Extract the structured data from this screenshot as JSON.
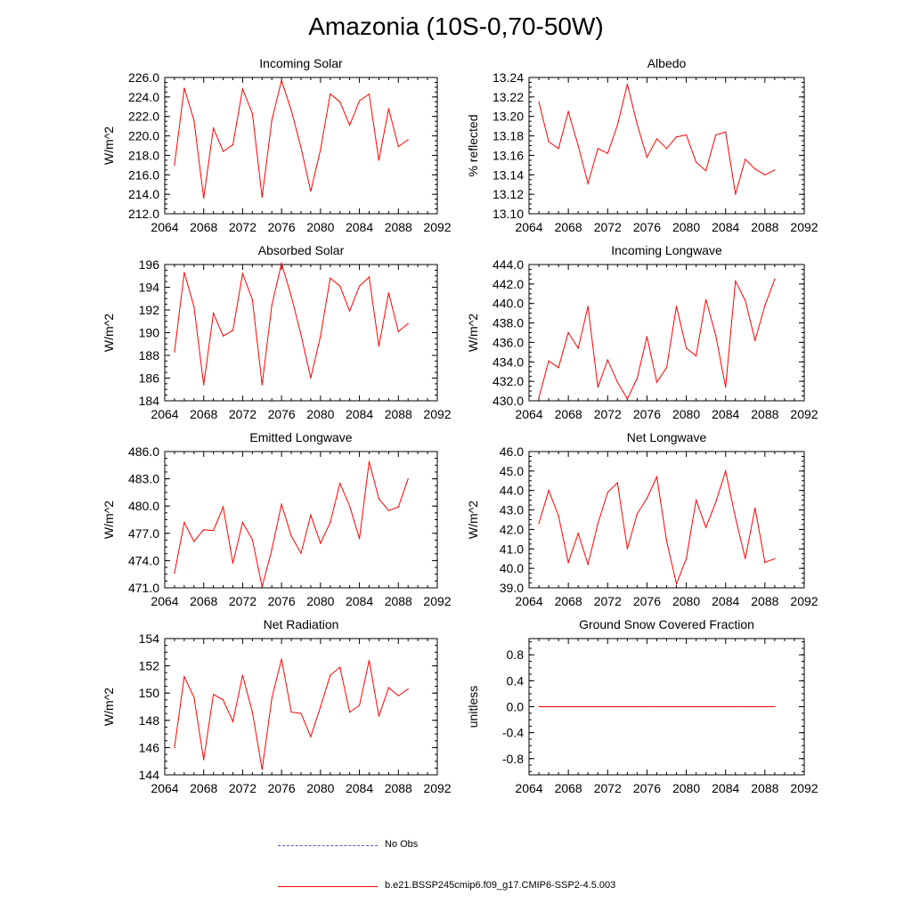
{
  "title": "Amazonia (10S-0,70-50W)",
  "colors": {
    "series": "#ff0000",
    "obs": "#4b5cc4",
    "axis": "#000000"
  },
  "legend": {
    "obs_label": "No Obs",
    "model_label": "b.e21.BSSP245cmip6.f09_g17.CMIP6-SSP2-4.5.003"
  },
  "chart_data": [
    {
      "type": "line",
      "title": "Incoming Solar",
      "ylabel": "W/m^2",
      "xlabel": "",
      "xlim": [
        2064,
        2092
      ],
      "xticks": [
        2064,
        2068,
        2072,
        2076,
        2080,
        2084,
        2088,
        2092
      ],
      "ylim": [
        212,
        226
      ],
      "yticks": [
        212.0,
        214.0,
        216.0,
        218.0,
        220.0,
        222.0,
        224.0,
        226.0
      ],
      "ydec": 1,
      "x": [
        2065,
        2066,
        2067,
        2068,
        2069,
        2070,
        2071,
        2072,
        2073,
        2074,
        2075,
        2076,
        2077,
        2078,
        2079,
        2080,
        2081,
        2082,
        2083,
        2084,
        2085,
        2086,
        2087,
        2088,
        2089
      ],
      "series": [
        {
          "name": "b.e21.BSSP245cmip6.f09_g17.CMIP6-SSP2-4.5.003",
          "values": [
            217.0,
            224.9,
            221.6,
            213.6,
            220.8,
            218.4,
            219.1,
            224.8,
            222.3,
            213.7,
            221.6,
            225.7,
            222.6,
            218.8,
            214.3,
            218.6,
            224.3,
            223.5,
            221.1,
            223.6,
            224.3,
            217.5,
            222.8,
            218.9,
            219.6
          ]
        }
      ]
    },
    {
      "type": "line",
      "title": "Albedo",
      "ylabel": "% reflected",
      "xlabel": "",
      "xlim": [
        2064,
        2092
      ],
      "xticks": [
        2064,
        2068,
        2072,
        2076,
        2080,
        2084,
        2088,
        2092
      ],
      "ylim": [
        13.1,
        13.24
      ],
      "yticks": [
        13.1,
        13.12,
        13.14,
        13.16,
        13.18,
        13.2,
        13.22,
        13.24
      ],
      "ydec": 2,
      "x": [
        2065,
        2066,
        2067,
        2068,
        2069,
        2070,
        2071,
        2072,
        2073,
        2074,
        2075,
        2076,
        2077,
        2078,
        2079,
        2080,
        2081,
        2082,
        2083,
        2084,
        2085,
        2086,
        2087,
        2088,
        2089
      ],
      "series": [
        {
          "name": "b.e21.BSSP245cmip6.f09_g17.CMIP6-SSP2-4.5.003",
          "values": [
            13.215,
            13.174,
            13.167,
            13.205,
            13.17,
            13.131,
            13.167,
            13.162,
            13.191,
            13.233,
            13.192,
            13.158,
            13.177,
            13.167,
            13.179,
            13.181,
            13.153,
            13.144,
            13.181,
            13.184,
            13.12,
            13.156,
            13.146,
            13.14,
            13.145
          ]
        }
      ]
    },
    {
      "type": "line",
      "title": "Absorbed Solar",
      "ylabel": "W/m^2",
      "xlabel": "",
      "xlim": [
        2064,
        2092
      ],
      "xticks": [
        2064,
        2068,
        2072,
        2076,
        2080,
        2084,
        2088,
        2092
      ],
      "ylim": [
        184,
        196
      ],
      "yticks": [
        184,
        186,
        188,
        190,
        192,
        194,
        196
      ],
      "ydec": 0,
      "x": [
        2065,
        2066,
        2067,
        2068,
        2069,
        2070,
        2071,
        2072,
        2073,
        2074,
        2075,
        2076,
        2077,
        2078,
        2079,
        2080,
        2081,
        2082,
        2083,
        2084,
        2085,
        2086,
        2087,
        2088,
        2089
      ],
      "series": [
        {
          "name": "b.e21.BSSP245cmip6.f09_g17.CMIP6-SSP2-4.5.003",
          "values": [
            188.3,
            195.3,
            192.3,
            185.4,
            191.7,
            189.7,
            190.2,
            195.2,
            192.9,
            185.4,
            192.4,
            196.1,
            193.2,
            189.8,
            186.0,
            189.7,
            194.8,
            194.1,
            191.9,
            194.1,
            194.9,
            188.8,
            193.5,
            190.1,
            190.8
          ]
        }
      ]
    },
    {
      "type": "line",
      "title": "Incoming Longwave",
      "ylabel": "W/m^2",
      "xlabel": "",
      "xlim": [
        2064,
        2092
      ],
      "xticks": [
        2064,
        2068,
        2072,
        2076,
        2080,
        2084,
        2088,
        2092
      ],
      "ylim": [
        430,
        444
      ],
      "yticks": [
        430.0,
        432.0,
        434.0,
        436.0,
        438.0,
        440.0,
        442.0,
        444.0
      ],
      "ydec": 1,
      "x": [
        2065,
        2066,
        2067,
        2068,
        2069,
        2070,
        2071,
        2072,
        2073,
        2074,
        2075,
        2076,
        2077,
        2078,
        2079,
        2080,
        2081,
        2082,
        2083,
        2084,
        2085,
        2086,
        2087,
        2088,
        2089
      ],
      "series": [
        {
          "name": "b.e21.BSSP245cmip6.f09_g17.CMIP6-SSP2-4.5.003",
          "values": [
            430.3,
            434.1,
            433.4,
            437.0,
            435.4,
            439.7,
            431.4,
            434.2,
            431.9,
            430.2,
            432.3,
            436.6,
            431.9,
            433.4,
            439.7,
            435.4,
            434.6,
            440.4,
            436.7,
            431.4,
            442.3,
            440.3,
            436.2,
            439.8,
            442.5
          ]
        }
      ]
    },
    {
      "type": "line",
      "title": "Emitted Longwave",
      "ylabel": "W/m^2",
      "xlabel": "",
      "xlim": [
        2064,
        2092
      ],
      "xticks": [
        2064,
        2068,
        2072,
        2076,
        2080,
        2084,
        2088,
        2092
      ],
      "ylim": [
        471,
        486
      ],
      "yticks": [
        471.0,
        474.0,
        477.0,
        480.0,
        483.0,
        486.0
      ],
      "ydec": 1,
      "x": [
        2065,
        2066,
        2067,
        2068,
        2069,
        2070,
        2071,
        2072,
        2073,
        2074,
        2075,
        2076,
        2077,
        2078,
        2079,
        2080,
        2081,
        2082,
        2083,
        2084,
        2085,
        2086,
        2087,
        2088,
        2089
      ],
      "series": [
        {
          "name": "b.e21.BSSP245cmip6.f09_g17.CMIP6-SSP2-4.5.003",
          "values": [
            472.6,
            478.2,
            476.1,
            477.4,
            477.3,
            479.9,
            473.7,
            478.2,
            476.3,
            471.1,
            475.2,
            480.2,
            476.7,
            474.8,
            479.0,
            475.9,
            478.2,
            482.5,
            480.0,
            476.4,
            484.9,
            480.8,
            479.5,
            479.9,
            483.0
          ]
        }
      ]
    },
    {
      "type": "line",
      "title": "Net Longwave",
      "ylabel": "W/m^2",
      "xlabel": "",
      "xlim": [
        2064,
        2092
      ],
      "xticks": [
        2064,
        2068,
        2072,
        2076,
        2080,
        2084,
        2088,
        2092
      ],
      "ylim": [
        39,
        46
      ],
      "yticks": [
        39.0,
        40.0,
        41.0,
        42.0,
        43.0,
        44.0,
        45.0,
        46.0
      ],
      "ydec": 1,
      "x": [
        2065,
        2066,
        2067,
        2068,
        2069,
        2070,
        2071,
        2072,
        2073,
        2074,
        2075,
        2076,
        2077,
        2078,
        2079,
        2080,
        2081,
        2082,
        2083,
        2084,
        2085,
        2086,
        2087,
        2088,
        2089
      ],
      "series": [
        {
          "name": "b.e21.BSSP245cmip6.f09_g17.CMIP6-SSP2-4.5.003",
          "values": [
            42.3,
            44.0,
            42.7,
            40.3,
            41.8,
            40.2,
            42.3,
            43.9,
            44.4,
            41.0,
            42.8,
            43.6,
            44.7,
            41.4,
            39.2,
            40.5,
            43.5,
            42.1,
            43.4,
            45.0,
            42.6,
            40.5,
            43.1,
            40.3,
            40.5
          ]
        }
      ]
    },
    {
      "type": "line",
      "title": "Net Radiation",
      "ylabel": "W/m^2",
      "xlabel": "",
      "xlim": [
        2064,
        2092
      ],
      "xticks": [
        2064,
        2068,
        2072,
        2076,
        2080,
        2084,
        2088,
        2092
      ],
      "ylim": [
        144,
        154
      ],
      "yticks": [
        144,
        146,
        148,
        150,
        152,
        154
      ],
      "ydec": 0,
      "x": [
        2065,
        2066,
        2067,
        2068,
        2069,
        2070,
        2071,
        2072,
        2073,
        2074,
        2075,
        2076,
        2077,
        2078,
        2079,
        2080,
        2081,
        2082,
        2083,
        2084,
        2085,
        2086,
        2087,
        2088,
        2089
      ],
      "series": [
        {
          "name": "b.e21.BSSP245cmip6.f09_g17.CMIP6-SSP2-4.5.003",
          "values": [
            146.0,
            151.2,
            149.7,
            145.1,
            149.9,
            149.5,
            147.9,
            151.3,
            148.6,
            144.4,
            149.6,
            152.5,
            148.6,
            148.5,
            146.8,
            149.0,
            151.3,
            151.9,
            148.6,
            149.1,
            152.4,
            148.3,
            150.4,
            149.8,
            150.3
          ]
        }
      ]
    },
    {
      "type": "line",
      "title": "Ground Snow Covered Fraction",
      "ylabel": "unitless",
      "xlabel": "",
      "xlim": [
        2064,
        2092
      ],
      "xticks": [
        2064,
        2068,
        2072,
        2076,
        2080,
        2084,
        2088,
        2092
      ],
      "ylim": [
        -1.05,
        1.05
      ],
      "yticks": [
        -0.8,
        -0.4,
        0.0,
        0.4,
        0.8
      ],
      "ydec": 1,
      "x": [
        2065,
        2066,
        2067,
        2068,
        2069,
        2070,
        2071,
        2072,
        2073,
        2074,
        2075,
        2076,
        2077,
        2078,
        2079,
        2080,
        2081,
        2082,
        2083,
        2084,
        2085,
        2086,
        2087,
        2088,
        2089
      ],
      "series": [
        {
          "name": "b.e21.BSSP245cmip6.f09_g17.CMIP6-SSP2-4.5.003",
          "values": [
            0,
            0,
            0,
            0,
            0,
            0,
            0,
            0,
            0,
            0,
            0,
            0,
            0,
            0,
            0,
            0,
            0,
            0,
            0,
            0,
            0,
            0,
            0,
            0,
            0
          ]
        }
      ]
    }
  ]
}
